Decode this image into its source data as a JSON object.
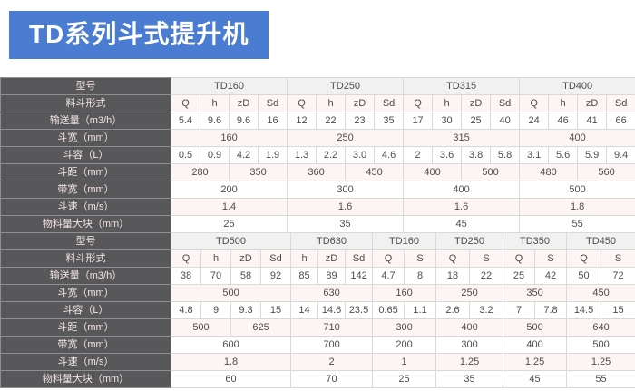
{
  "banner": {
    "title": "TD系列斗式提升机",
    "bg_color": "#4a7dd2",
    "text_color": "#ffffff"
  },
  "colors": {
    "label_bg": "#58585a",
    "label_text": "#f2e4e4",
    "stripe_pink": "#fdf4f4",
    "stripe_white": "#ffffff",
    "model_row_bg": "#f1f1f1",
    "border": "#d9d9d9",
    "cell_text": "#4d4d4d"
  },
  "tables": [
    {
      "name": "spec-table-top",
      "rows": [
        {
          "label": "型号",
          "kind": "model",
          "cells": [
            {
              "v": "TD160",
              "span": 4
            },
            {
              "v": "TD250",
              "span": 4
            },
            {
              "v": "TD315",
              "span": 4
            },
            {
              "v": "TD400",
              "span": 4
            }
          ]
        },
        {
          "label": "料斗形式",
          "cells": [
            "Q",
            "h",
            "zD",
            "Sd",
            "Q",
            "h",
            "zD",
            "Sd",
            "Q",
            "h",
            "zD",
            "Sd",
            "Q",
            "h",
            "zD",
            "Sd"
          ]
        },
        {
          "label": "输送量（m3/h）",
          "cells": [
            "5.4",
            "9.6",
            "9.6",
            "16",
            "12",
            "22",
            "23",
            "35",
            "17",
            "30",
            "25",
            "40",
            "24",
            "46",
            "41",
            "66"
          ]
        },
        {
          "label": "斗宽（mm）",
          "cells": [
            {
              "v": "160",
              "span": 4
            },
            {
              "v": "250",
              "span": 4
            },
            {
              "v": "315",
              "span": 4
            },
            {
              "v": "400",
              "span": 4
            }
          ]
        },
        {
          "label": "斗容（L）",
          "cells": [
            "0.5",
            "0.9",
            "4.2",
            "1.9",
            "1.3",
            "2.2",
            "3.0",
            "4.6",
            "2",
            "3.6",
            "3.8",
            "5.8",
            "3.1",
            "5.6",
            "5.9",
            "9.4"
          ]
        },
        {
          "label": "斗距（mm）",
          "cells": [
            {
              "v": "280",
              "span": 2
            },
            {
              "v": "350",
              "span": 2
            },
            {
              "v": "360",
              "span": 2
            },
            {
              "v": "450",
              "span": 2
            },
            {
              "v": "400",
              "span": 2
            },
            {
              "v": "500",
              "span": 2
            },
            {
              "v": "480",
              "span": 2
            },
            {
              "v": "560",
              "span": 2
            }
          ]
        },
        {
          "label": "带宽（mm）",
          "cells": [
            {
              "v": "200",
              "span": 4
            },
            {
              "v": "300",
              "span": 4
            },
            {
              "v": "400",
              "span": 4
            },
            {
              "v": "500",
              "span": 4
            }
          ]
        },
        {
          "label": "斗速（m/s）",
          "cells": [
            {
              "v": "1.4",
              "span": 4
            },
            {
              "v": "1.6",
              "span": 4
            },
            {
              "v": "1.6",
              "span": 4
            },
            {
              "v": "1.8",
              "span": 4
            }
          ]
        },
        {
          "label": "物料量大块（mm）",
          "cells": [
            {
              "v": "25",
              "span": 4
            },
            {
              "v": "35",
              "span": 4
            },
            {
              "v": "45",
              "span": 4
            },
            {
              "v": "55",
              "span": 4
            }
          ]
        }
      ]
    },
    {
      "name": "spec-table-bottom",
      "rows": [
        {
          "label": "型号",
          "kind": "model",
          "cells": [
            {
              "v": "TD500",
              "span": 4
            },
            {
              "v": "TD630",
              "span": 3
            },
            {
              "v": "TD160",
              "span": 2
            },
            {
              "v": "TD250",
              "span": 2
            },
            {
              "v": "TD350",
              "span": 2
            },
            {
              "v": "TD450",
              "span": 2
            }
          ]
        },
        {
          "label": "料斗形式",
          "cells": [
            "Q",
            "h",
            "zD",
            "Sd",
            "h",
            "zD",
            "Sd",
            "Q",
            "S",
            "Q",
            "S",
            "Q",
            "S",
            "Q",
            "S"
          ]
        },
        {
          "label": "输送量（m3/h）",
          "cells": [
            "38",
            "70",
            "58",
            "92",
            "85",
            "89",
            "142",
            "4.7",
            "8",
            "18",
            "22",
            "25",
            "42",
            "50",
            "72"
          ]
        },
        {
          "label": "斗宽（mm）",
          "cells": [
            {
              "v": "500",
              "span": 4
            },
            {
              "v": "630",
              "span": 3
            },
            {
              "v": "160",
              "span": 2
            },
            {
              "v": "250",
              "span": 2
            },
            {
              "v": "350",
              "span": 2
            },
            {
              "v": "450",
              "span": 2
            }
          ]
        },
        {
          "label": "斗容（L）",
          "cells": [
            "4.8",
            "9",
            "9.3",
            "15",
            "14",
            "14.6",
            "23.5",
            "0.65",
            "1.1",
            "2.6",
            "3.2",
            "7",
            "7.8",
            "14.5",
            "15"
          ]
        },
        {
          "label": "斗距（mm）",
          "cells": [
            {
              "v": "500",
              "span": 2
            },
            {
              "v": "625",
              "span": 2
            },
            {
              "v": "710",
              "span": 3
            },
            {
              "v": "300",
              "span": 2
            },
            {
              "v": "400",
              "span": 2
            },
            {
              "v": "500",
              "span": 2
            },
            {
              "v": "640",
              "span": 2
            }
          ]
        },
        {
          "label": "带宽（mm）",
          "cells": [
            {
              "v": "600",
              "span": 4
            },
            {
              "v": "700",
              "span": 3
            },
            {
              "v": "200",
              "span": 2
            },
            {
              "v": "300",
              "span": 2
            },
            {
              "v": "400",
              "span": 2
            },
            {
              "v": "500",
              "span": 2
            }
          ]
        },
        {
          "label": "斗速（m/s）",
          "cells": [
            {
              "v": "1.8",
              "span": 4
            },
            {
              "v": "2",
              "span": 3
            },
            {
              "v": "1",
              "span": 2
            },
            {
              "v": "1.25",
              "span": 2
            },
            {
              "v": "1.25",
              "span": 2
            },
            {
              "v": "1.25",
              "span": 2
            }
          ]
        },
        {
          "label": "物料量大块（mm）",
          "cells": [
            {
              "v": "60",
              "span": 4
            },
            {
              "v": "70",
              "span": 3
            },
            {
              "v": "25",
              "span": 2
            },
            {
              "v": "35",
              "span": 2
            },
            {
              "v": "45",
              "span": 2
            },
            {
              "v": "55",
              "span": 2
            }
          ]
        }
      ]
    }
  ]
}
